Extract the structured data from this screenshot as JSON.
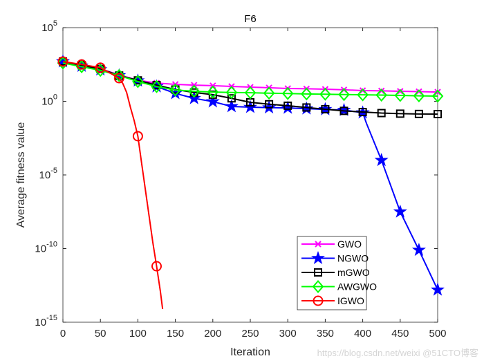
{
  "chart_data": {
    "type": "line",
    "title": "F6",
    "xlabel": "Iteration",
    "ylabel": "Average fitness value",
    "xlim": [
      0,
      500
    ],
    "ylim": [
      1e-15,
      100000.0
    ],
    "yscale": "log",
    "xticks": [
      "0",
      "50",
      "100",
      "150",
      "200",
      "250",
      "300",
      "350",
      "400",
      "450",
      "500"
    ],
    "yticks": [
      {
        "base": "10",
        "exp": "-15"
      },
      {
        "base": "10",
        "exp": "-10"
      },
      {
        "base": "10",
        "exp": "-5"
      },
      {
        "base": "10",
        "exp": "0"
      },
      {
        "base": "10",
        "exp": "5"
      }
    ],
    "grid": false,
    "legend_position": "bottom-right-inside",
    "series": [
      {
        "name": "GWO",
        "color": "#ff00ff",
        "marker": "x",
        "x": [
          0,
          25,
          50,
          75,
          100,
          125,
          150,
          175,
          200,
          225,
          250,
          275,
          300,
          325,
          350,
          375,
          400,
          425,
          450,
          475,
          500
        ],
        "log10y": [
          2.7,
          2.46,
          2.2,
          1.8,
          1.43,
          1.24,
          1.15,
          1.1,
          1.06,
          1.01,
          0.96,
          0.92,
          0.87,
          0.85,
          0.82,
          0.78,
          0.73,
          0.71,
          0.68,
          0.66,
          0.63
        ]
      },
      {
        "name": "NGWO",
        "color": "#0000ff",
        "marker": "star",
        "x": [
          0,
          25,
          50,
          75,
          100,
          125,
          150,
          175,
          200,
          225,
          250,
          275,
          300,
          325,
          350,
          375,
          400,
          405,
          425,
          450,
          475,
          500
        ],
        "log10y": [
          2.7,
          2.4,
          2.15,
          1.75,
          1.4,
          1.0,
          0.54,
          0.2,
          -0.02,
          -0.35,
          -0.4,
          -0.43,
          -0.45,
          -0.5,
          -0.55,
          -0.6,
          -0.77,
          -1.5,
          -4.0,
          -7.5,
          -10.1,
          -12.8
        ]
      },
      {
        "name": "mGWO",
        "color": "#000000",
        "marker": "square",
        "x": [
          0,
          25,
          50,
          75,
          100,
          125,
          150,
          175,
          200,
          225,
          250,
          275,
          300,
          325,
          350,
          375,
          400,
          425,
          450,
          475,
          500
        ],
        "log10y": [
          2.7,
          2.45,
          2.2,
          1.75,
          1.42,
          1.1,
          0.8,
          0.6,
          0.45,
          0.2,
          -0.07,
          -0.2,
          -0.3,
          -0.42,
          -0.54,
          -0.65,
          -0.73,
          -0.8,
          -0.84,
          -0.86,
          -0.87
        ]
      },
      {
        "name": "AWGWO",
        "color": "#00ff00",
        "marker": "diamond",
        "x": [
          0,
          25,
          50,
          75,
          100,
          125,
          150,
          175,
          200,
          225,
          250,
          275,
          300,
          325,
          350,
          375,
          400,
          425,
          450,
          475,
          500
        ],
        "log10y": [
          2.6,
          2.35,
          2.1,
          1.75,
          1.34,
          1.0,
          0.77,
          0.68,
          0.63,
          0.6,
          0.58,
          0.55,
          0.53,
          0.5,
          0.48,
          0.46,
          0.44,
          0.42,
          0.4,
          0.37,
          0.35
        ]
      },
      {
        "name": "IGWO",
        "color": "#ff0000",
        "marker": "circle",
        "x": [
          0,
          25,
          50,
          75,
          80,
          85,
          90,
          95,
          100,
          105,
          110,
          115,
          120,
          125,
          130,
          133
        ],
        "log10y": [
          2.7,
          2.5,
          2.28,
          1.57,
          1.2,
          0.6,
          -0.4,
          -1.3,
          -2.37,
          -4.2,
          -6.0,
          -7.8,
          -9.6,
          -11.2,
          -12.9,
          -14.1
        ]
      }
    ]
  },
  "watermark": "https://blog.csdn.net/weixi  @51CTO博客"
}
